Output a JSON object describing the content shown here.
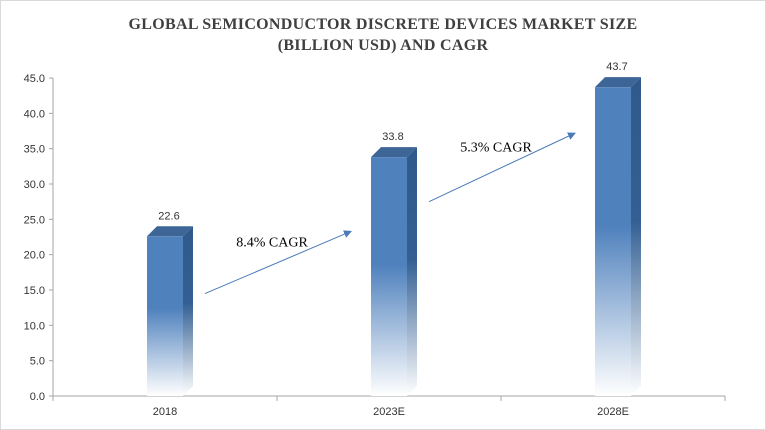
{
  "chart_data": {
    "type": "bar",
    "title_line1": "GLOBAL SEMICONDUCTOR DISCRETE DEVICES MARKET SIZE",
    "title_line2": "(BILLION USD) AND CAGR",
    "categories": [
      "2018",
      "2023E",
      "2028E"
    ],
    "values": [
      22.6,
      33.8,
      43.7
    ],
    "data_labels": [
      "22.6",
      "33.8",
      "43.7"
    ],
    "ylim": [
      0,
      45
    ],
    "yticks": [
      "0.0",
      "5.0",
      "10.0",
      "15.0",
      "20.0",
      "25.0",
      "30.0",
      "35.0",
      "40.0",
      "45.0"
    ],
    "grid": false,
    "annotations": [
      {
        "text": "8.4% CAGR",
        "from": "2018",
        "to": "2023E"
      },
      {
        "text": "5.3% CAGR",
        "from": "2023E",
        "to": "2028E"
      }
    ],
    "colors": {
      "bar_front": "#4f81bd",
      "bar_side": "#2f5a8a",
      "bar_top": "#3d6596",
      "arrow": "#4a7ab8",
      "axis": "#a6a6a6"
    }
  }
}
